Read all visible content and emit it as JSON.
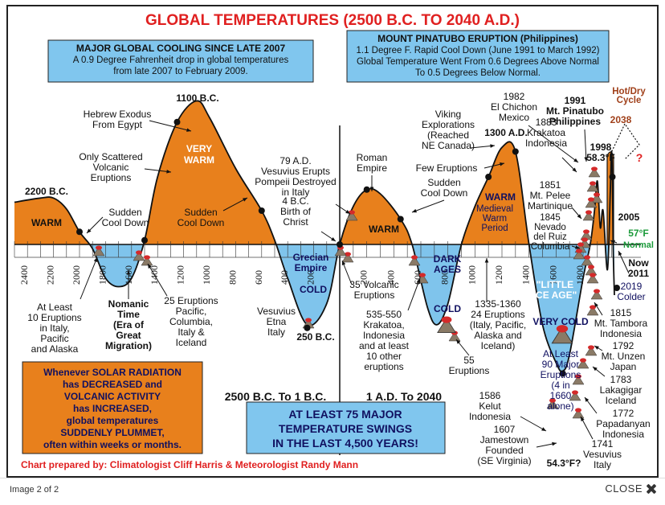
{
  "viewer": {
    "image_counter": "Image 2 of 2",
    "close_label": "CLOSE"
  },
  "chart_data": {
    "type": "area",
    "title": "GLOBAL TEMPERATURES (2500 B.C. TO 2040 A.D.)",
    "x_ticks_bc": [
      "2400",
      "2200",
      "2000",
      "1800",
      "1600",
      "1400",
      "1200",
      "1000",
      "800",
      "600",
      "400",
      "200"
    ],
    "x_ticks_ad": [
      "200",
      "400",
      "600",
      "800",
      "1000",
      "1200",
      "1400",
      "1600",
      "1800"
    ],
    "curve": [
      {
        "year": -2500,
        "temp": 0.5
      },
      {
        "year": -2300,
        "temp": 0.55
      },
      {
        "year": -2200,
        "temp": 0.55
      },
      {
        "year": -2100,
        "temp": 0.42
      },
      {
        "year": -2000,
        "temp": 0.15
      },
      {
        "year": -1900,
        "temp": -0.05
      },
      {
        "year": -1800,
        "temp": -0.4
      },
      {
        "year": -1700,
        "temp": -0.5
      },
      {
        "year": -1600,
        "temp": -0.4
      },
      {
        "year": -1500,
        "temp": 0.05
      },
      {
        "year": -1400,
        "temp": 0.8
      },
      {
        "year": -1250,
        "temp": 1.45
      },
      {
        "year": -1100,
        "temp": 1.7
      },
      {
        "year": -1000,
        "temp": 1.5
      },
      {
        "year": -800,
        "temp": 0.9
      },
      {
        "year": -600,
        "temp": 0.4
      },
      {
        "year": -500,
        "temp": 0.05
      },
      {
        "year": -400,
        "temp": -0.4
      },
      {
        "year": -250,
        "temp": -0.95
      },
      {
        "year": -100,
        "temp": -0.7
      },
      {
        "year": 0,
        "temp": 0
      },
      {
        "year": 100,
        "temp": 0.45
      },
      {
        "year": 200,
        "temp": 0.65
      },
      {
        "year": 300,
        "temp": 0.6
      },
      {
        "year": 450,
        "temp": 0.3
      },
      {
        "year": 535,
        "temp": 0
      },
      {
        "year": 650,
        "temp": -0.75
      },
      {
        "year": 720,
        "temp": -0.95
      },
      {
        "year": 800,
        "temp": -0.7
      },
      {
        "year": 900,
        "temp": 0
      },
      {
        "year": 1000,
        "temp": 0.45
      },
      {
        "year": 1100,
        "temp": 0.8
      },
      {
        "year": 1200,
        "temp": 1.15
      },
      {
        "year": 1300,
        "temp": 1.1
      },
      {
        "year": 1400,
        "temp": 0
      },
      {
        "year": 1500,
        "temp": -0.95
      },
      {
        "year": 1600,
        "temp": -1.4
      },
      {
        "year": 1650,
        "temp": -1.5
      },
      {
        "year": 1700,
        "temp": -1.3
      },
      {
        "year": 1800,
        "temp": -0.4
      },
      {
        "year": 1850,
        "temp": 0
      },
      {
        "year": 1880,
        "temp": 0.4
      },
      {
        "year": 1900,
        "temp": 0.75
      },
      {
        "year": 1920,
        "temp": 0.2
      },
      {
        "year": 1940,
        "temp": 0.4
      },
      {
        "year": 1970,
        "temp": -0.3
      },
      {
        "year": 1990,
        "temp": 0.6
      },
      {
        "year": 1998,
        "temp": 1.1
      },
      {
        "year": 2005,
        "temp": 0.8
      },
      {
        "year": 2010,
        "temp": 0
      },
      {
        "year": 2019,
        "temp": -0.6
      }
    ],
    "hot_dry_cycle": {
      "label": "Hot/Dry Cycle",
      "year_label": "2038",
      "question": "?"
    },
    "headline_boxes": {
      "cooling": {
        "title": "MAJOR GLOBAL COOLING SINCE LATE 2007",
        "line1": "A 0.9 Degree Fahrenheit drop in global temperatures",
        "line2": "from late 2007 to February 2009."
      },
      "pinatubo": {
        "title": "MOUNT PINATUBO ERUPTION (Philippines)",
        "line1": "1.1 Degree F. Rapid Cool Down (June 1991 to March 1992)",
        "line2": "Global Temperature Went From 0.6 Degrees Above Normal",
        "line3": "To 0.5 Degrees Below Normal."
      },
      "solar": {
        "line1": "Whenever SOLAR RADIATION",
        "line2": "has DECREASED and",
        "line3": "VOLCANIC ACTIVITY",
        "line4": "has INCREASED,",
        "line5": "global temperatures",
        "line6": "SUDDENLY PLUMMET,",
        "line7": "often within weeks or months."
      },
      "swings": {
        "line1": "AT LEAST 75 MAJOR",
        "line2": "TEMPERATURE SWINGS",
        "line3": "IN THE LAST 4,500 YEARS!"
      }
    },
    "era_labels": {
      "bc": "2500 B.C. To 1 B.C.",
      "ad": "1 A.D. To 2040"
    },
    "credit": "Chart prepared by: Climatologist Cliff Harris & Meteorologist Randy Mann",
    "annotations": {
      "a2200": "2200 B.C.",
      "warm1": "WARM",
      "sudden1": [
        "Sudden",
        "Cool Down"
      ],
      "exodus": [
        "Hebrew Exodus",
        "From Egypt"
      ],
      "scattered": [
        "Only Scattered",
        "Volcanic",
        "Eruptions"
      ],
      "b1100": "1100 B.C.",
      "verywarm": [
        "VERY",
        "WARM"
      ],
      "sudden2": [
        "Sudden",
        "Cool Down"
      ],
      "ad79": [
        "79 A.D.",
        "Vesuvius Erupts",
        "Pompeii Destroyed",
        "in Italy"
      ],
      "bc4": [
        "4 B.C.",
        "Birth of",
        "Christ"
      ],
      "roman": [
        "Roman",
        "Empire"
      ],
      "warm2": "WARM",
      "viking": [
        "Viking",
        "Explorations",
        "(Reached",
        "NE Canada)"
      ],
      "few": "Few Eruptions",
      "sudden3": [
        "Sudden",
        "Cool Down"
      ],
      "ad1300": "1300 A.D.",
      "medieval": [
        "WARM",
        "Medieval",
        "Warm",
        "Period"
      ],
      "y1982": [
        "1982",
        "El Chichon",
        "Mexico"
      ],
      "y1991": [
        "1991",
        "Mt. Pinatubo",
        "Philippines"
      ],
      "y1883": [
        "1883",
        "Krakatoa",
        "Indonesia"
      ],
      "y1851": [
        "1851",
        "Mt. Pelee",
        "Martinique"
      ],
      "y1845": [
        "1845",
        "Nevado",
        "del Ruiz",
        "Columbia"
      ],
      "y1998": [
        "1998",
        "58.3°F"
      ],
      "y2005": "2005",
      "f57": [
        "57°F",
        "Normal"
      ],
      "now": [
        "Now",
        "2011"
      ],
      "y2019": [
        "2019",
        "Colder"
      ],
      "tenerupt": [
        "At Least",
        "10 Eruptions",
        "in Italy,",
        "Pacific",
        "and Alaska"
      ],
      "nomanic": [
        "Nomanic",
        "Time",
        "(Era of",
        "Great",
        "Migration)"
      ],
      "e25": [
        "25 Eruptions",
        "Pacific,",
        "Columbia,",
        "Italy &",
        "Iceland"
      ],
      "grecian": [
        "Grecian",
        "Empire"
      ],
      "cold1": "COLD",
      "vesuvius": [
        "Vesuvius",
        "Etna",
        "Italy"
      ],
      "b250": "250 B.C.",
      "e35": [
        "35 Volcanic",
        "Eruptions"
      ],
      "darkages": [
        "DARK",
        "AGES"
      ],
      "cold2": "COLD",
      "e535": [
        "535-550",
        "Krakatoa,",
        "Indonesia",
        "and at least",
        "10 other",
        "eruptions"
      ],
      "e1335": [
        "1335-1360",
        "24 Eruptions",
        "(Italy, Pacific,",
        "Alaska and",
        "Iceland)"
      ],
      "e55": [
        "55",
        "Eruptions"
      ],
      "lia": [
        "\"LITTLE",
        "ICE AGE\""
      ],
      "verycold": "VERY COLD",
      "e90": [
        "At Least",
        "90 Major",
        "Eruptions",
        "(4 in",
        "1660",
        "alone)"
      ],
      "y1815": [
        "1815",
        "Mt. Tambora",
        "Indonesia"
      ],
      "y1792": [
        "1792",
        "Mt. Unzen",
        "Japan"
      ],
      "y1783": [
        "1783",
        "Lakagigar",
        "Iceland"
      ],
      "y1772": [
        "1772",
        "Papadanyan",
        "Indonesia"
      ],
      "y1741": [
        "1741",
        "Vesuvius",
        "Italy"
      ],
      "y1586": [
        "1586",
        "Kelut",
        "Indonesia"
      ],
      "y1607": [
        "1607",
        "Jamestown",
        "Founded",
        "(SE Virginia)"
      ],
      "f543": "54.3°F?"
    },
    "colors": {
      "warm": "#e8801c",
      "cold": "#7fc4ec",
      "title": "#e02020",
      "box_blue": "#80c6ee",
      "navy": "#101060",
      "brown": "#a0401a",
      "green": "#1b9a3a",
      "volcano": "#8a7a66",
      "lava": "#d42a2a"
    }
  }
}
